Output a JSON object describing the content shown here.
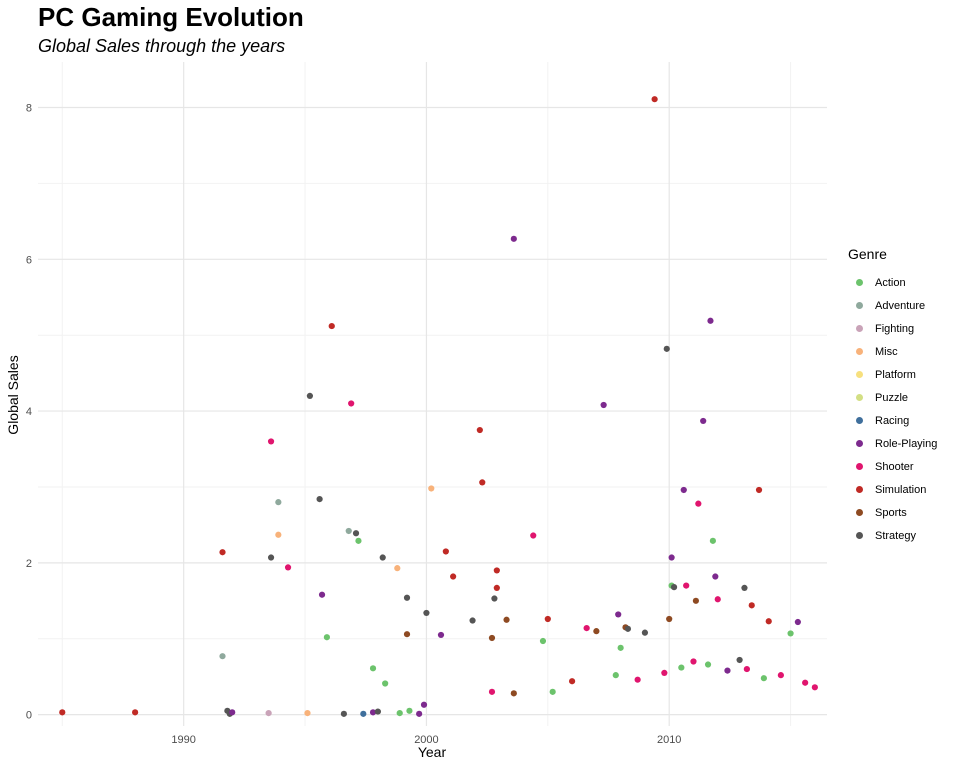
{
  "chart_data": {
    "type": "scatter",
    "title": "PC Gaming Evolution",
    "subtitle": "Global Sales through the years",
    "xlabel": "Year",
    "ylabel": "Global Sales",
    "xlim": [
      1984,
      2016.5
    ],
    "ylim": [
      -0.15,
      8.6
    ],
    "xticks": [
      1990,
      2000,
      2010
    ],
    "yticks": [
      0,
      2,
      4,
      6,
      8
    ],
    "grid": true,
    "legend_title": "Genre",
    "legend_position": "right",
    "genres": [
      {
        "name": "Action",
        "color": "#6cc36c"
      },
      {
        "name": "Adventure",
        "color": "#8fa99d"
      },
      {
        "name": "Fighting",
        "color": "#c9a3b8"
      },
      {
        "name": "Misc",
        "color": "#f8b27a"
      },
      {
        "name": "Platform",
        "color": "#f7e07e"
      },
      {
        "name": "Puzzle",
        "color": "#d3df84"
      },
      {
        "name": "Racing",
        "color": "#3f6f9c"
      },
      {
        "name": "Role-Playing",
        "color": "#7d2a8e"
      },
      {
        "name": "Shooter",
        "color": "#e0156e"
      },
      {
        "name": "Simulation",
        "color": "#c02a25"
      },
      {
        "name": "Sports",
        "color": "#8e4a22"
      },
      {
        "name": "Strategy",
        "color": "#555555"
      }
    ],
    "points": [
      {
        "x": 1985.0,
        "y": 0.03,
        "genre": "Simulation"
      },
      {
        "x": 1988.0,
        "y": 0.03,
        "genre": "Simulation"
      },
      {
        "x": 1991.6,
        "y": 2.14,
        "genre": "Simulation"
      },
      {
        "x": 1991.6,
        "y": 0.77,
        "genre": "Adventure"
      },
      {
        "x": 1991.8,
        "y": 0.05,
        "genre": "Strategy"
      },
      {
        "x": 1991.9,
        "y": 0.01,
        "genre": "Strategy"
      },
      {
        "x": 1992.0,
        "y": 0.03,
        "genre": "Role-Playing"
      },
      {
        "x": 1993.6,
        "y": 3.6,
        "genre": "Shooter"
      },
      {
        "x": 1993.6,
        "y": 2.07,
        "genre": "Strategy"
      },
      {
        "x": 1993.5,
        "y": 0.02,
        "genre": "Fighting"
      },
      {
        "x": 1993.9,
        "y": 2.8,
        "genre": "Adventure"
      },
      {
        "x": 1993.9,
        "y": 2.37,
        "genre": "Misc"
      },
      {
        "x": 1994.3,
        "y": 1.94,
        "genre": "Shooter"
      },
      {
        "x": 1995.1,
        "y": 0.02,
        "genre": "Misc"
      },
      {
        "x": 1995.2,
        "y": 4.2,
        "genre": "Strategy"
      },
      {
        "x": 1995.6,
        "y": 2.84,
        "genre": "Strategy"
      },
      {
        "x": 1995.7,
        "y": 1.58,
        "genre": "Role-Playing"
      },
      {
        "x": 1995.9,
        "y": 1.02,
        "genre": "Action"
      },
      {
        "x": 1996.1,
        "y": 5.12,
        "genre": "Simulation"
      },
      {
        "x": 1996.6,
        "y": 0.01,
        "genre": "Strategy"
      },
      {
        "x": 1996.9,
        "y": 4.1,
        "genre": "Shooter"
      },
      {
        "x": 1996.8,
        "y": 2.42,
        "genre": "Adventure"
      },
      {
        "x": 1997.1,
        "y": 2.39,
        "genre": "Strategy"
      },
      {
        "x": 1997.2,
        "y": 2.29,
        "genre": "Action"
      },
      {
        "x": 1997.4,
        "y": 0.01,
        "genre": "Racing"
      },
      {
        "x": 1997.8,
        "y": 0.61,
        "genre": "Action"
      },
      {
        "x": 1997.8,
        "y": 0.03,
        "genre": "Role-Playing"
      },
      {
        "x": 1998.0,
        "y": 0.04,
        "genre": "Strategy"
      },
      {
        "x": 1998.2,
        "y": 2.07,
        "genre": "Strategy"
      },
      {
        "x": 1998.3,
        "y": 0.41,
        "genre": "Action"
      },
      {
        "x": 1998.8,
        "y": 1.93,
        "genre": "Misc"
      },
      {
        "x": 1998.9,
        "y": 0.02,
        "genre": "Action"
      },
      {
        "x": 1999.2,
        "y": 1.54,
        "genre": "Strategy"
      },
      {
        "x": 1999.2,
        "y": 1.06,
        "genre": "Sports"
      },
      {
        "x": 1999.3,
        "y": 0.05,
        "genre": "Action"
      },
      {
        "x": 1999.7,
        "y": 0.01,
        "genre": "Role-Playing"
      },
      {
        "x": 1999.9,
        "y": 0.13,
        "genre": "Role-Playing"
      },
      {
        "x": 2000.0,
        "y": 1.34,
        "genre": "Strategy"
      },
      {
        "x": 2000.2,
        "y": 2.98,
        "genre": "Misc"
      },
      {
        "x": 2000.6,
        "y": 1.05,
        "genre": "Role-Playing"
      },
      {
        "x": 2000.8,
        "y": 2.15,
        "genre": "Simulation"
      },
      {
        "x": 2001.1,
        "y": 1.82,
        "genre": "Simulation"
      },
      {
        "x": 2001.9,
        "y": 1.24,
        "genre": "Strategy"
      },
      {
        "x": 2002.2,
        "y": 3.75,
        "genre": "Simulation"
      },
      {
        "x": 2002.3,
        "y": 3.06,
        "genre": "Simulation"
      },
      {
        "x": 2002.7,
        "y": 1.01,
        "genre": "Sports"
      },
      {
        "x": 2002.8,
        "y": 1.53,
        "genre": "Strategy"
      },
      {
        "x": 2002.9,
        "y": 1.9,
        "genre": "Simulation"
      },
      {
        "x": 2002.9,
        "y": 1.67,
        "genre": "Simulation"
      },
      {
        "x": 2003.3,
        "y": 1.25,
        "genre": "Sports"
      },
      {
        "x": 2003.6,
        "y": 6.27,
        "genre": "Role-Playing"
      },
      {
        "x": 2004.4,
        "y": 2.36,
        "genre": "Shooter"
      },
      {
        "x": 2004.8,
        "y": 0.97,
        "genre": "Action"
      },
      {
        "x": 2005.0,
        "y": 1.26,
        "genre": "Simulation"
      },
      {
        "x": 2006.6,
        "y": 1.14,
        "genre": "Shooter"
      },
      {
        "x": 2007.0,
        "y": 1.1,
        "genre": "Sports"
      },
      {
        "x": 2007.3,
        "y": 4.08,
        "genre": "Role-Playing"
      },
      {
        "x": 2007.9,
        "y": 1.32,
        "genre": "Role-Playing"
      },
      {
        "x": 2008.0,
        "y": 0.88,
        "genre": "Action"
      },
      {
        "x": 2008.2,
        "y": 1.15,
        "genre": "Sports"
      },
      {
        "x": 2008.3,
        "y": 1.13,
        "genre": "Strategy"
      },
      {
        "x": 2009.0,
        "y": 1.08,
        "genre": "Strategy"
      },
      {
        "x": 2009.4,
        "y": 8.11,
        "genre": "Simulation"
      },
      {
        "x": 2009.9,
        "y": 4.82,
        "genre": "Strategy"
      },
      {
        "x": 2010.0,
        "y": 1.26,
        "genre": "Sports"
      },
      {
        "x": 2010.1,
        "y": 2.07,
        "genre": "Role-Playing"
      },
      {
        "x": 2010.1,
        "y": 1.7,
        "genre": "Action"
      },
      {
        "x": 2010.2,
        "y": 1.68,
        "genre": "Strategy"
      },
      {
        "x": 2010.6,
        "y": 2.96,
        "genre": "Role-Playing"
      },
      {
        "x": 2010.7,
        "y": 1.7,
        "genre": "Shooter"
      },
      {
        "x": 2011.1,
        "y": 1.5,
        "genre": "Sports"
      },
      {
        "x": 2011.2,
        "y": 2.78,
        "genre": "Shooter"
      },
      {
        "x": 2011.4,
        "y": 3.87,
        "genre": "Role-Playing"
      },
      {
        "x": 2011.7,
        "y": 5.19,
        "genre": "Role-Playing"
      },
      {
        "x": 2011.8,
        "y": 2.29,
        "genre": "Action"
      },
      {
        "x": 2011.9,
        "y": 1.82,
        "genre": "Role-Playing"
      },
      {
        "x": 2012.0,
        "y": 1.52,
        "genre": "Shooter"
      },
      {
        "x": 2013.1,
        "y": 1.67,
        "genre": "Strategy"
      },
      {
        "x": 2013.4,
        "y": 1.44,
        "genre": "Simulation"
      },
      {
        "x": 2013.7,
        "y": 2.96,
        "genre": "Simulation"
      },
      {
        "x": 2014.1,
        "y": 1.23,
        "genre": "Simulation"
      },
      {
        "x": 2015.0,
        "y": 1.07,
        "genre": "Action"
      },
      {
        "x": 2015.3,
        "y": 1.22,
        "genre": "Role-Playing"
      },
      {
        "x": 2009.8,
        "y": 0.55,
        "genre": "Shooter"
      },
      {
        "x": 2010.5,
        "y": 0.62,
        "genre": "Action"
      },
      {
        "x": 2011.0,
        "y": 0.7,
        "genre": "Shooter"
      },
      {
        "x": 2011.6,
        "y": 0.66,
        "genre": "Action"
      },
      {
        "x": 2012.4,
        "y": 0.58,
        "genre": "Role-Playing"
      },
      {
        "x": 2012.9,
        "y": 0.72,
        "genre": "Strategy"
      },
      {
        "x": 2013.2,
        "y": 0.6,
        "genre": "Shooter"
      },
      {
        "x": 2013.9,
        "y": 0.48,
        "genre": "Action"
      },
      {
        "x": 2014.6,
        "y": 0.52,
        "genre": "Shooter"
      },
      {
        "x": 2015.6,
        "y": 0.42,
        "genre": "Shooter"
      },
      {
        "x": 2016.0,
        "y": 0.36,
        "genre": "Shooter"
      },
      {
        "x": 2008.7,
        "y": 0.46,
        "genre": "Shooter"
      },
      {
        "x": 2007.8,
        "y": 0.52,
        "genre": "Action"
      },
      {
        "x": 2006.0,
        "y": 0.44,
        "genre": "Simulation"
      },
      {
        "x": 2005.2,
        "y": 0.3,
        "genre": "Action"
      },
      {
        "x": 2003.6,
        "y": 0.28,
        "genre": "Sports"
      },
      {
        "x": 2002.7,
        "y": 0.3,
        "genre": "Shooter"
      }
    ]
  }
}
